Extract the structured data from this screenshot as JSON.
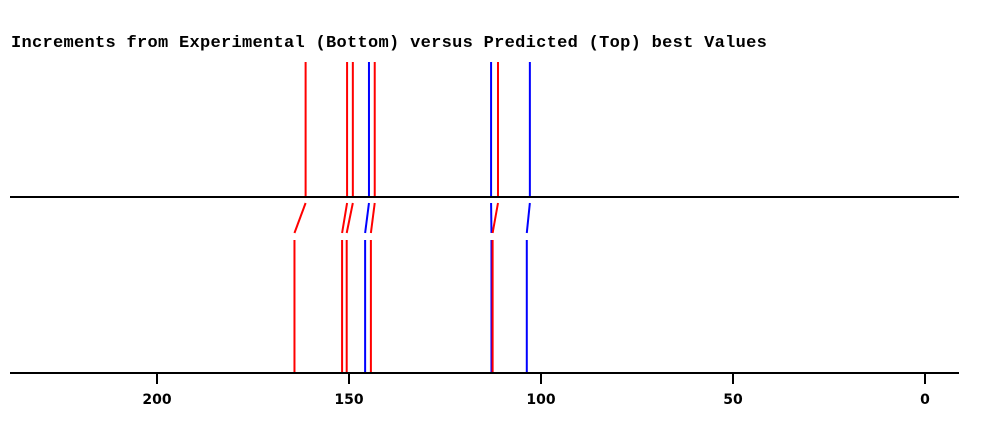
{
  "chart_data": {
    "type": "stick-spectrum-comparison",
    "title": "Increments from Experimental (Bottom) versus Predicted (Top) best Values",
    "xlabel": "",
    "ylabel": "",
    "x_reversed": true,
    "xlim": [
      238,
      -9
    ],
    "xticks": [
      200,
      150,
      100,
      50,
      0
    ],
    "tick_labels": [
      "200",
      "150",
      "100",
      "50",
      "0"
    ],
    "colors": {
      "red": "#ff0000",
      "blue": "#0000ff",
      "axis": "#000000"
    },
    "pairs": [
      {
        "predicted": 161.3,
        "experimental": 164.2,
        "color": "#ff0000"
      },
      {
        "predicted": 150.5,
        "experimental": 151.8,
        "color": "#ff0000"
      },
      {
        "predicted": 149.0,
        "experimental": 150.6,
        "color": "#ff0000"
      },
      {
        "predicted": 144.8,
        "experimental": 145.8,
        "color": "#0000ff"
      },
      {
        "predicted": 143.3,
        "experimental": 144.3,
        "color": "#ff0000"
      },
      {
        "predicted": 113.0,
        "experimental": 112.9,
        "color": "#0000ff"
      },
      {
        "predicted": 111.2,
        "experimental": 112.6,
        "color": "#ff0000"
      },
      {
        "predicted": 102.9,
        "experimental": 103.7,
        "color": "#0000ff"
      }
    ],
    "grid": false,
    "legend": null
  }
}
